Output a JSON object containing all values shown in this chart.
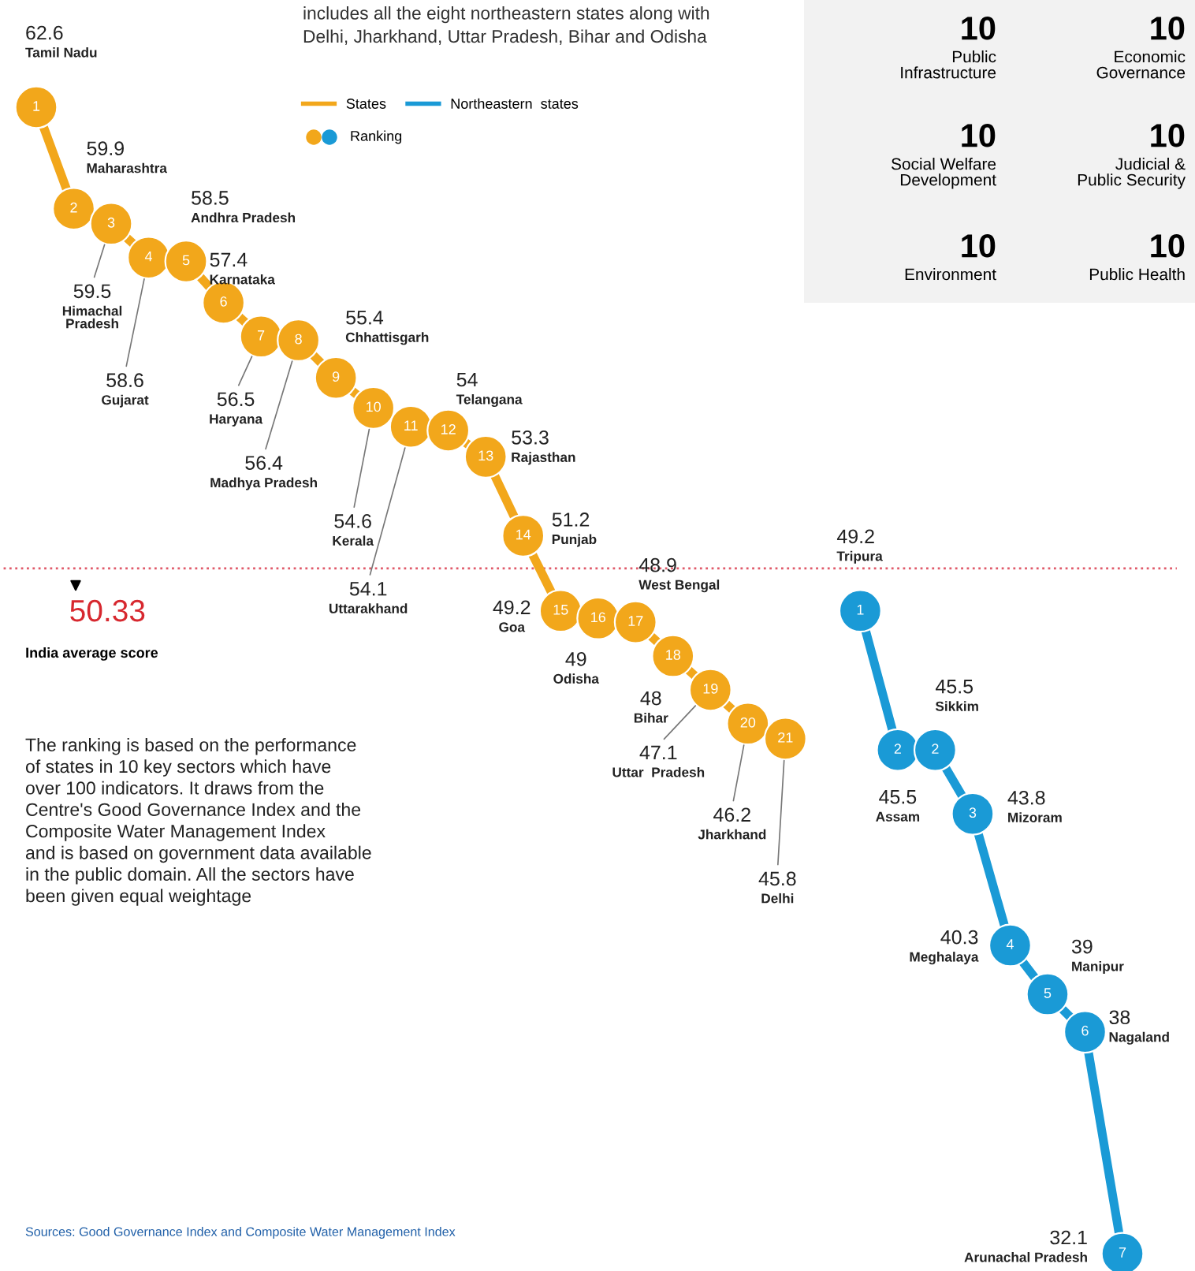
{
  "chart_data": {
    "type": "line",
    "subtitle": "includes all the eight northeastern states along with\nDelhi, Jharkhand, Uttar Pradesh, Bihar and Odisha",
    "categories": [
      null,
      null,
      null,
      null,
      null,
      null,
      null,
      null,
      null,
      null,
      null,
      null,
      null,
      null,
      null,
      null,
      null,
      null,
      null,
      null,
      null,
      null,
      null,
      null,
      null,
      null,
      null,
      null,
      null,
      null
    ],
    "series": [
      {
        "name": "States",
        "color": "#f2a71b",
        "values": [
          62.6,
          59.9,
          59.5,
          58.6,
          58.5,
          57.4,
          56.5,
          56.4,
          55.4,
          54.6,
          54.1,
          54,
          53.3,
          51.2,
          49.2,
          49,
          48.9,
          48,
          47.1,
          46.2,
          45.8,
          null,
          null,
          null,
          null,
          null,
          null,
          null,
          null,
          null
        ],
        "value_labels": [
          "62.6\nTamil Nadu",
          "59.9\nMaharashtra",
          "59.5\nHimachal\nPradesh",
          "58.6\nGujarat",
          "58.5\nAndhra Pradesh",
          "57.4\nKarnataka",
          "56.5\nHaryana",
          "56.4\nMadhya Pradesh",
          "55.4\nChhattisgarh",
          "54.6\nKerala",
          "54.1\nUttarakhand",
          "54\nTelangana",
          "53.3\nRajasthan",
          "51.2\nPunjab",
          "49.2\nGoa",
          "49\nOdisha",
          "48.9\nWest Bengal",
          "48\nBihar",
          "47.1\nUttar  Pradesh",
          "46.2\nJharkhand",
          "45.8\nDelhi",
          null,
          null,
          null,
          null,
          null,
          null,
          null,
          null,
          null
        ]
      },
      {
        "name": "Northeastern  states",
        "color": "#1a9ad6",
        "values": [
          null,
          null,
          null,
          null,
          null,
          null,
          null,
          null,
          null,
          null,
          null,
          null,
          null,
          null,
          null,
          null,
          null,
          null,
          null,
          null,
          null,
          null,
          49.2,
          45.5,
          45.5,
          43.8,
          40.3,
          39,
          38,
          32.1
        ],
        "value_labels": [
          null,
          null,
          null,
          null,
          null,
          null,
          null,
          null,
          null,
          null,
          null,
          null,
          null,
          null,
          null,
          null,
          null,
          null,
          null,
          null,
          null,
          null,
          "49.2\nTripura",
          "45.5\nAssam",
          "45.5\nSikkim",
          "43.8\nMizoram",
          "40.3\nMeghalaya",
          "39\nManipur",
          "38\nNagaland",
          "32.1\nArunachal Pradesh"
        ]
      }
    ],
    "marker": "circle",
    "line_style": "solid",
    "legend": "top",
    "ref_lines": [
      {
        "axis": "y",
        "value": 50.33,
        "label": "50.33\nIndia average score",
        "color": "#e05a6a",
        "line_style": "dotted"
      }
    ],
    "annotations": [
      {
        "text": "1",
        "y": 62.6
      },
      {
        "text": "2",
        "y": 59.9
      },
      {
        "text": "3",
        "y": 59.5
      },
      {
        "text": "4",
        "y": 58.6
      },
      {
        "text": "5",
        "y": 58.5
      },
      {
        "text": "6",
        "y": 57.4
      },
      {
        "text": "7",
        "y": 56.5
      },
      {
        "text": "8",
        "y": 56.4
      },
      {
        "text": "9",
        "y": 55.4
      },
      {
        "text": "10",
        "y": 54.6
      },
      {
        "text": "11",
        "y": 54.1
      },
      {
        "text": "12",
        "y": 54
      },
      {
        "text": "13",
        "y": 53.3
      },
      {
        "text": "14",
        "y": 51.2
      },
      {
        "text": "15",
        "y": 49.2
      },
      {
        "text": "16",
        "y": 49
      },
      {
        "text": "17",
        "y": 48.9
      },
      {
        "text": "18",
        "y": 48
      },
      {
        "text": "19",
        "y": 47.1
      },
      {
        "text": "20",
        "y": 46.2
      },
      {
        "text": "21",
        "y": 45.8
      },
      {
        "text": "1",
        "y": 49.2
      },
      {
        "text": "2",
        "y": 45.5
      },
      {
        "text": "2",
        "y": 45.5
      },
      {
        "text": "3",
        "y": 43.8
      },
      {
        "text": "4",
        "y": 40.3
      },
      {
        "text": "5",
        "y": 39
      },
      {
        "text": "6",
        "y": 38
      },
      {
        "text": "7",
        "y": 32.1
      },
      "10\nPublic\nInfrastructure",
      "10\nEconomic\nGovernance",
      "10\nSocial Welfare\nDevelopment",
      "10\nJudicial &\nPublic Security",
      "10\nEnvironment",
      "10\nPublic Health",
      "Ranking",
      "The ranking is based on the performance\nof states in 10 key sectors which have\nover 100 indicators. It draws from the\nCentre's Good Governance Index and the\nComposite Water Management Index\nand is based on government data available\nin the public domain. All the sectors have\nbeen given equal weightage",
      "Sources: Good Governance Index and Composite Water Management Index"
    ]
  }
}
